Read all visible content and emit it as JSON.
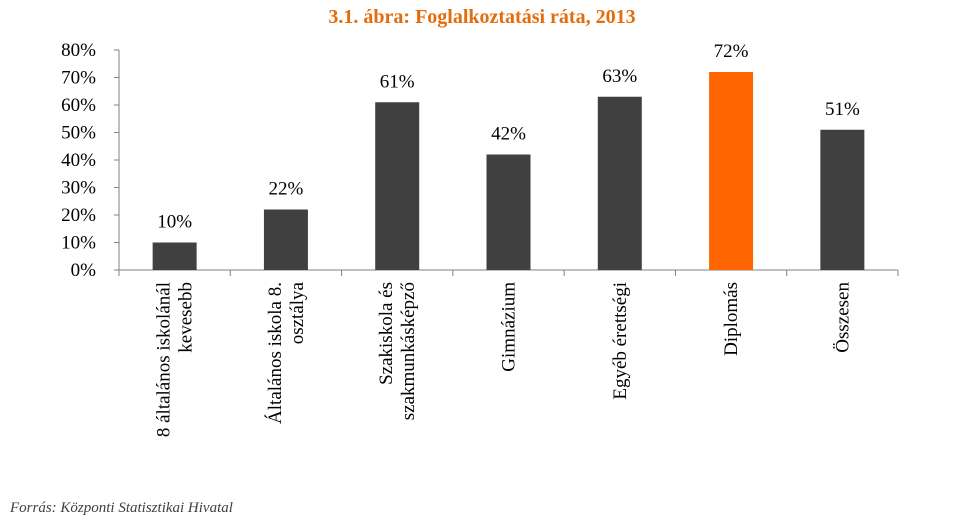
{
  "chart_data": {
    "type": "bar",
    "title": "3.1. ábra: Foglalkoztatási ráta, 2013",
    "categories": [
      [
        "8 általános iskolánál",
        "kevesebb"
      ],
      [
        "Általános iskola 8.",
        "osztálya"
      ],
      [
        "Szakiskola és",
        "szakmunkásképző"
      ],
      [
        "Gimnázium"
      ],
      [
        "Egyéb érettségi"
      ],
      [
        "Diplomás"
      ],
      [
        "Összesen"
      ]
    ],
    "values": [
      10,
      22,
      61,
      42,
      63,
      72,
      51
    ],
    "value_labels": [
      "10%",
      "22%",
      "61%",
      "42%",
      "63%",
      "72%",
      "51%"
    ],
    "ylim": [
      0,
      80
    ],
    "yticks": [
      0,
      10,
      20,
      30,
      40,
      50,
      60,
      70,
      80
    ],
    "ytick_labels": [
      "0%",
      "10%",
      "20%",
      "30%",
      "40%",
      "50%",
      "60%",
      "70%",
      "80%"
    ],
    "bar_colors": [
      "#404040",
      "#404040",
      "#404040",
      "#404040",
      "#404040",
      "#FF6600",
      "#404040"
    ],
    "title_color": "#E46C0A",
    "grid": false,
    "legend": "none",
    "category_label_orientation": "vertical"
  },
  "source": "Forrás: Központi Statisztikai Hivatal"
}
